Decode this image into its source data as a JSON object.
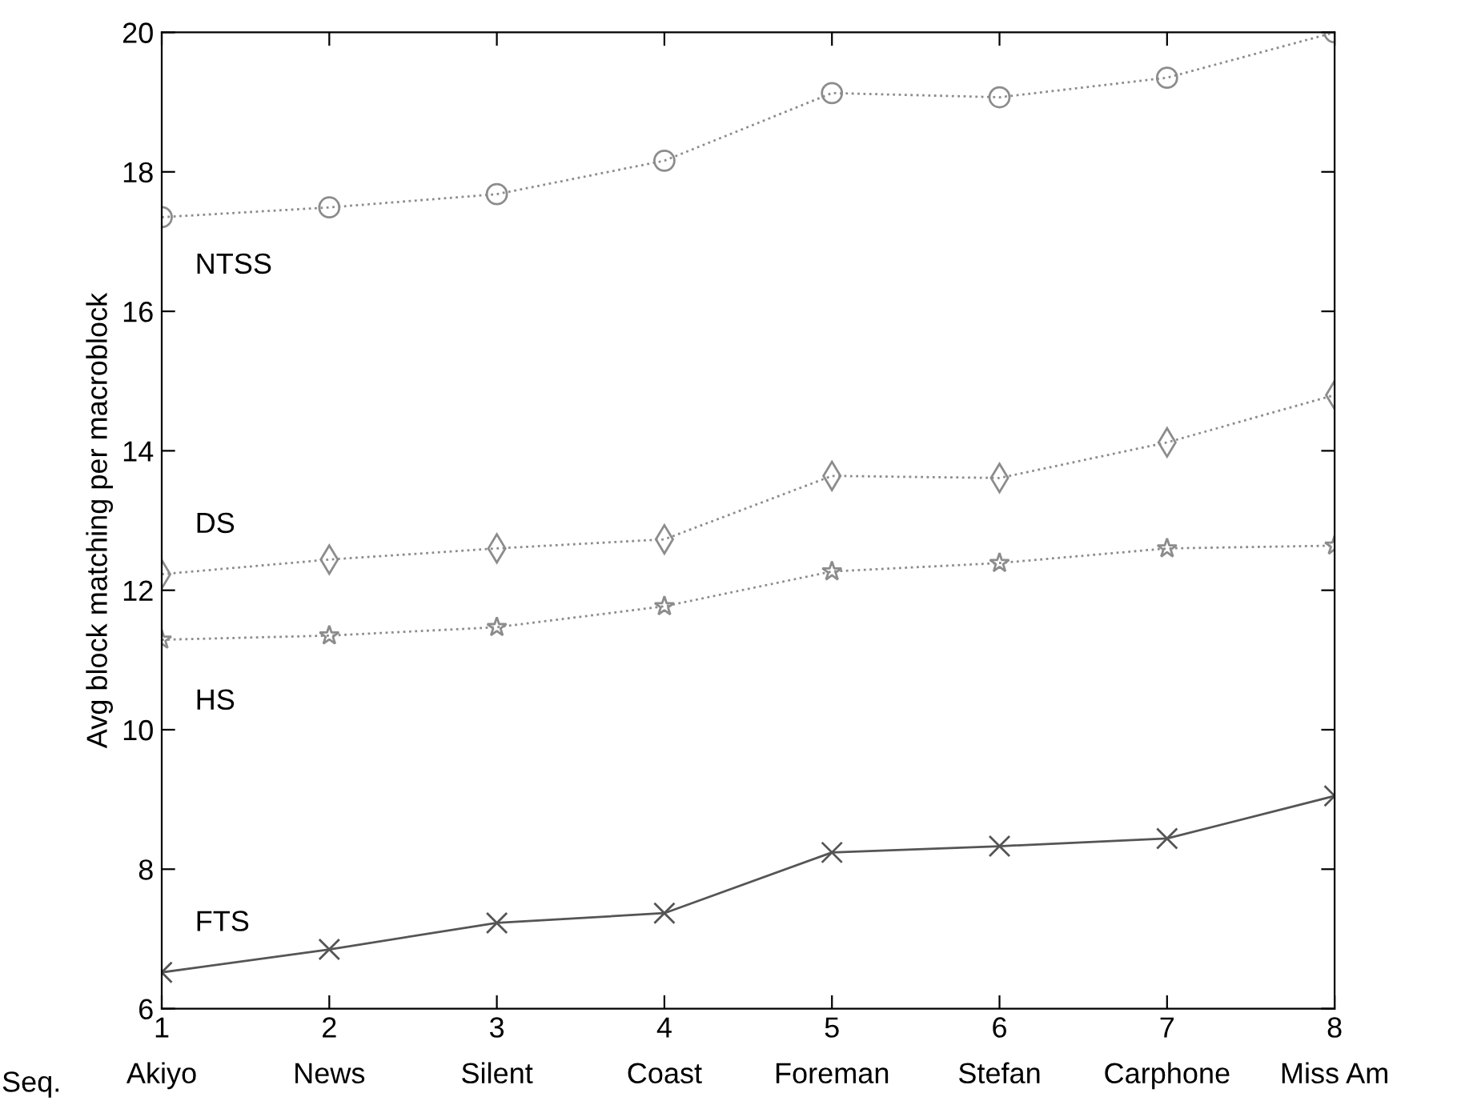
{
  "chart_data": {
    "type": "line",
    "ylabel": "Avg block matching per macroblock",
    "annotations": [
      "Seq."
    ],
    "x": [
      1,
      2,
      3,
      4,
      5,
      6,
      7,
      8
    ],
    "xlim": [
      1,
      8
    ],
    "xticks": [
      {
        "value": 1,
        "label": "1\nAkiyo"
      },
      {
        "value": 2,
        "label": "2\nNews"
      },
      {
        "value": 3,
        "label": "3\nSilent"
      },
      {
        "value": 4,
        "label": "4\nCoast"
      },
      {
        "value": 5,
        "label": "5\nForeman"
      },
      {
        "value": 6,
        "label": "6\nStefan"
      },
      {
        "value": 7,
        "label": "7\nCarphone"
      },
      {
        "value": 8,
        "label": "8\nMiss Am"
      }
    ],
    "ylim": [
      6,
      20
    ],
    "yticks": [
      6,
      8,
      10,
      12,
      14,
      16,
      18,
      20
    ],
    "grid": false,
    "legend": false,
    "series": [
      {
        "name": "NTSS",
        "color": "#8c8c8c",
        "marker": "circle",
        "line_style": "dotted",
        "values": [
          17.35,
          17.49,
          17.68,
          18.16,
          19.13,
          19.07,
          19.35,
          20.0
        ]
      },
      {
        "name": "DS",
        "color": "#8c8c8c",
        "marker": "diamond",
        "line_style": "dotted",
        "values": [
          12.23,
          12.44,
          12.6,
          12.73,
          13.64,
          13.61,
          14.12,
          14.8
        ]
      },
      {
        "name": "HS",
        "color": "#8c8c8c",
        "marker": "star",
        "line_style": "dotted",
        "values": [
          11.29,
          11.35,
          11.47,
          11.77,
          12.27,
          12.39,
          12.6,
          12.64
        ]
      },
      {
        "name": "FTS",
        "color": "#555555",
        "marker": "cross",
        "line_style": "solid",
        "values": [
          6.52,
          6.85,
          7.23,
          7.37,
          8.24,
          8.33,
          8.44,
          9.05
        ]
      }
    ]
  }
}
